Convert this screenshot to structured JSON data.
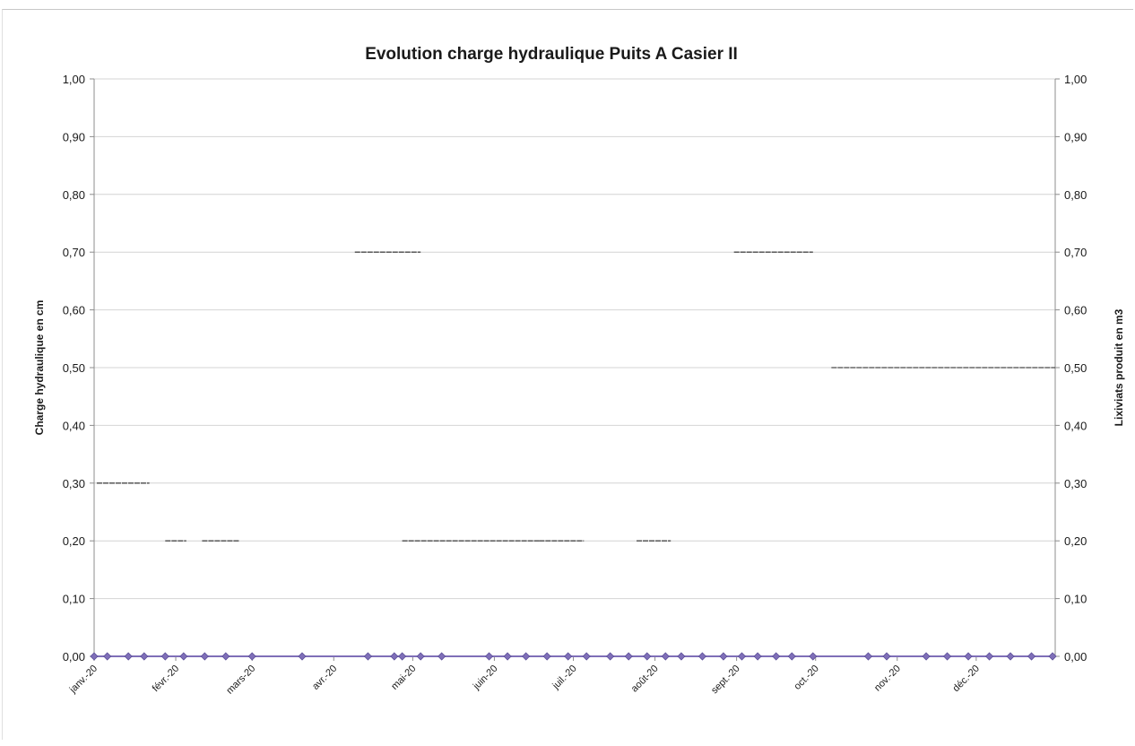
{
  "chart_data": {
    "type": "line",
    "title": "Evolution charge hydraulique Puits A Casier II",
    "ylabel": "Charge hydraulique en cm",
    "y2label": "Lixiviats produit en m3",
    "ylim": [
      0,
      1
    ],
    "y2lim": [
      0,
      1
    ],
    "yticks": [
      "0,00",
      "0,10",
      "0,20",
      "0,30",
      "0,40",
      "0,50",
      "0,60",
      "0,70",
      "0,80",
      "0,90",
      "1,00"
    ],
    "xlim": [
      "2020-01-01",
      "2020-12-31"
    ],
    "xtick_labels": [
      "janv.-20",
      "févr.-20",
      "mars-20",
      "avr.-20",
      "mai-20",
      "juin-20",
      "juil.-20",
      "août-20",
      "sept.-20",
      "oct.-20",
      "nov.-20",
      "déc.-20"
    ],
    "xtick_dates": [
      "2020-01-01",
      "2020-02-01",
      "2020-03-01",
      "2020-04-01",
      "2020-05-01",
      "2020-06-01",
      "2020-07-01",
      "2020-08-01",
      "2020-09-01",
      "2020-10-01",
      "2020-11-01",
      "2020-12-01"
    ],
    "grid": true,
    "series": [
      {
        "marker": "diamond",
        "color": "#7f6fb8",
        "points": [
          {
            "x": "2020-01-01",
            "y": 0
          },
          {
            "x": "2020-01-06",
            "y": 0
          },
          {
            "x": "2020-01-14",
            "y": 0
          },
          {
            "x": "2020-01-20",
            "y": 0
          },
          {
            "x": "2020-01-28",
            "y": 0
          },
          {
            "x": "2020-02-04",
            "y": 0
          },
          {
            "x": "2020-02-12",
            "y": 0
          },
          {
            "x": "2020-02-20",
            "y": 0
          },
          {
            "x": "2020-03-01",
            "y": 0
          },
          {
            "x": "2020-03-20",
            "y": 0
          },
          {
            "x": "2020-04-14",
            "y": 0
          },
          {
            "x": "2020-04-24",
            "y": 0
          },
          {
            "x": "2020-04-27",
            "y": 0
          },
          {
            "x": "2020-05-04",
            "y": 0
          },
          {
            "x": "2020-05-12",
            "y": 0
          },
          {
            "x": "2020-05-30",
            "y": 0
          },
          {
            "x": "2020-06-06",
            "y": 0
          },
          {
            "x": "2020-06-13",
            "y": 0
          },
          {
            "x": "2020-06-21",
            "y": 0
          },
          {
            "x": "2020-06-29",
            "y": 0
          },
          {
            "x": "2020-07-06",
            "y": 0
          },
          {
            "x": "2020-07-15",
            "y": 0
          },
          {
            "x": "2020-07-22",
            "y": 0
          },
          {
            "x": "2020-07-29",
            "y": 0
          },
          {
            "x": "2020-08-05",
            "y": 0
          },
          {
            "x": "2020-08-11",
            "y": 0
          },
          {
            "x": "2020-08-19",
            "y": 0
          },
          {
            "x": "2020-08-27",
            "y": 0
          },
          {
            "x": "2020-09-03",
            "y": 0
          },
          {
            "x": "2020-09-09",
            "y": 0
          },
          {
            "x": "2020-09-16",
            "y": 0
          },
          {
            "x": "2020-09-22",
            "y": 0
          },
          {
            "x": "2020-09-30",
            "y": 0
          },
          {
            "x": "2020-10-21",
            "y": 0
          },
          {
            "x": "2020-10-28",
            "y": 0
          },
          {
            "x": "2020-11-12",
            "y": 0
          },
          {
            "x": "2020-11-20",
            "y": 0
          },
          {
            "x": "2020-11-28",
            "y": 0
          },
          {
            "x": "2020-12-06",
            "y": 0
          },
          {
            "x": "2020-12-14",
            "y": 0
          },
          {
            "x": "2020-12-22",
            "y": 0
          },
          {
            "x": "2020-12-30",
            "y": 0
          }
        ]
      },
      {
        "style": "short-dashes",
        "color": "#4a4a4a",
        "points": [
          {
            "x": "2020-01-02",
            "y": 0.3
          },
          {
            "x": "2020-01-22",
            "y": 0.3
          },
          {
            "x": "2020-01-28",
            "y": 0.2
          },
          {
            "x": "2020-02-05",
            "y": 0.2
          },
          {
            "x": "2020-02-11",
            "y": 0.2
          },
          {
            "x": "2020-02-25",
            "y": 0.2
          },
          {
            "x": "2020-04-09",
            "y": 0.7
          },
          {
            "x": "2020-05-04",
            "y": 0.7
          },
          {
            "x": "2020-04-27",
            "y": 0.2
          },
          {
            "x": "2020-06-18",
            "y": 0.2
          },
          {
            "x": "2020-06-18",
            "y": 0.2
          },
          {
            "x": "2020-07-05",
            "y": 0.2
          },
          {
            "x": "2020-07-25",
            "y": 0.2
          },
          {
            "x": "2020-08-07",
            "y": 0.2
          },
          {
            "x": "2020-08-31",
            "y": 0.7
          },
          {
            "x": "2020-09-30",
            "y": 0.7
          },
          {
            "x": "2020-10-07",
            "y": 0.5
          },
          {
            "x": "2020-12-31",
            "y": 0.5
          }
        ]
      }
    ]
  }
}
